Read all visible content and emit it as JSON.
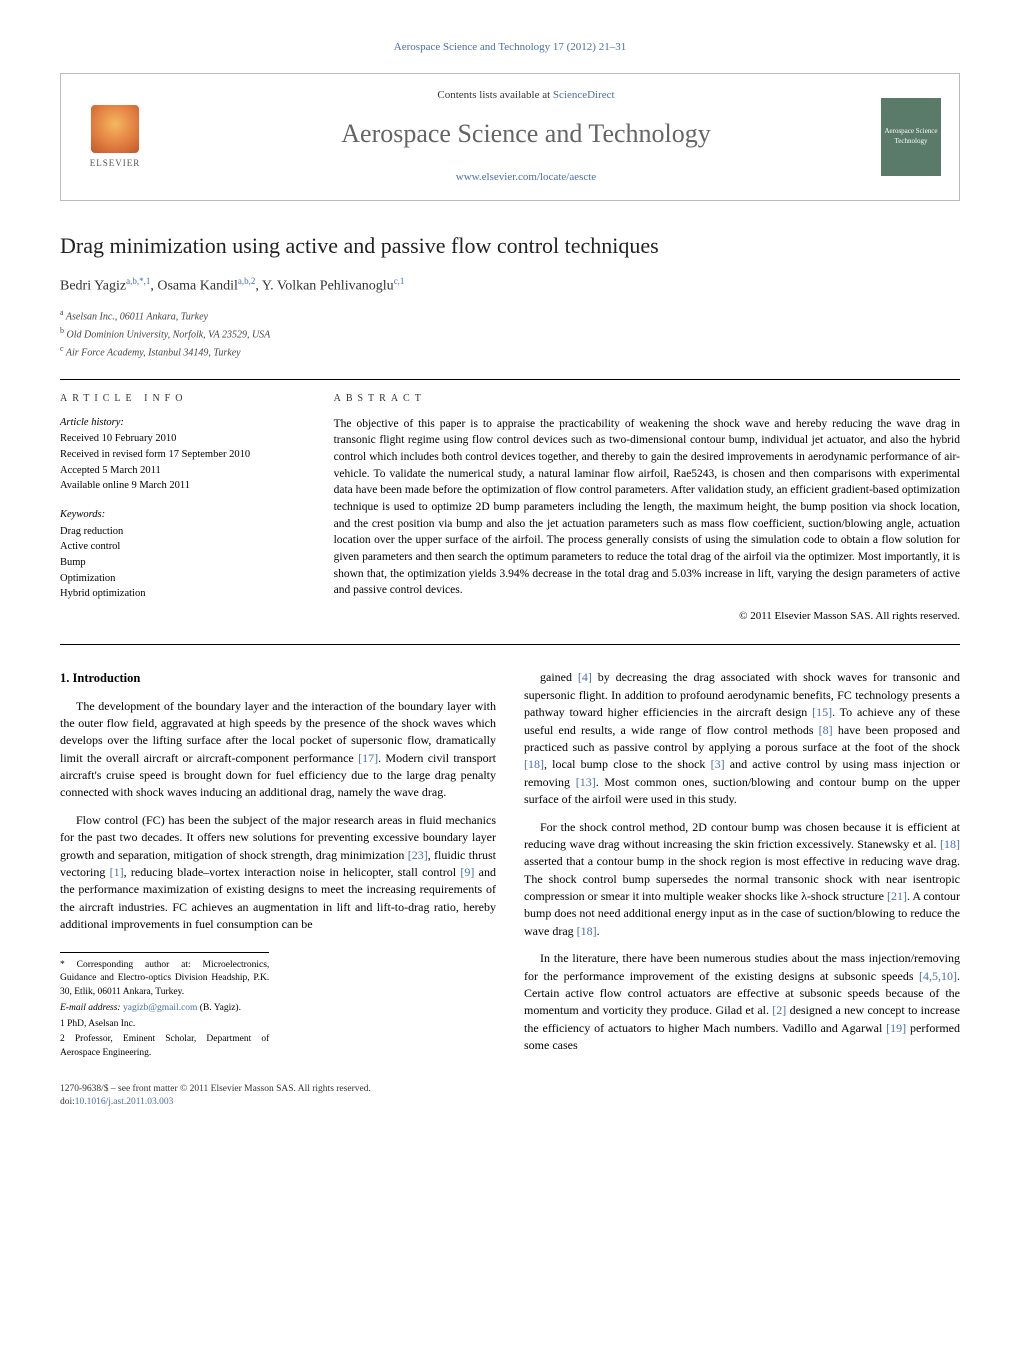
{
  "top_citation": "Aerospace Science and Technology 17 (2012) 21–31",
  "header": {
    "publisher_name": "ELSEVIER",
    "contents_prefix": "Contents lists available at ",
    "contents_link": "ScienceDirect",
    "journal_title": "Aerospace Science and Technology",
    "journal_url": "www.elsevier.com/locate/aescte",
    "cover_text": "Aerospace Science Technology"
  },
  "article": {
    "title": "Drag minimization using active and passive flow control techniques",
    "authors_html": "Bedri Yagiz<sup>a,b,*,1</sup>, Osama Kandil<sup>a,b,2</sup>, Y. Volkan Pehlivanoglu<sup>c,1</sup>",
    "affiliations": [
      {
        "sup": "a",
        "text": "Aselsan Inc., 06011 Ankara, Turkey"
      },
      {
        "sup": "b",
        "text": "Old Dominion University, Norfolk, VA 23529, USA"
      },
      {
        "sup": "c",
        "text": "Air Force Academy, Istanbul 34149, Turkey"
      }
    ]
  },
  "info": {
    "head": "ARTICLE INFO",
    "history_label": "Article history:",
    "history": [
      "Received 10 February 2010",
      "Received in revised form 17 September 2010",
      "Accepted 5 March 2011",
      "Available online 9 March 2011"
    ],
    "keywords_label": "Keywords:",
    "keywords": [
      "Drag reduction",
      "Active control",
      "Bump",
      "Optimization",
      "Hybrid optimization"
    ]
  },
  "abstract": {
    "head": "ABSTRACT",
    "text": "The objective of this paper is to appraise the practicability of weakening the shock wave and hereby reducing the wave drag in transonic flight regime using flow control devices such as two-dimensional contour bump, individual jet actuator, and also the hybrid control which includes both control devices together, and thereby to gain the desired improvements in aerodynamic performance of air-vehicle. To validate the numerical study, a natural laminar flow airfoil, Rae5243, is chosen and then comparisons with experimental data have been made before the optimization of flow control parameters. After validation study, an efficient gradient-based optimization technique is used to optimize 2D bump parameters including the length, the maximum height, the bump position via shock location, and the crest position via bump and also the jet actuation parameters such as mass flow coefficient, suction/blowing angle, actuation location over the upper surface of the airfoil. The process generally consists of using the simulation code to obtain a flow solution for given parameters and then search the optimum parameters to reduce the total drag of the airfoil via the optimizer. Most importantly, it is shown that, the optimization yields 3.94% decrease in the total drag and 5.03% increase in lift, varying the design parameters of active and passive control devices.",
    "copyright": "© 2011 Elsevier Masson SAS. All rights reserved."
  },
  "body": {
    "section_title": "1. Introduction",
    "left": [
      "The development of the boundary layer and the interaction of the boundary layer with the outer flow field, aggravated at high speeds by the presence of the shock waves which develops over the lifting surface after the local pocket of supersonic flow, dramatically limit the overall aircraft or aircraft-component performance [17]. Modern civil transport aircraft's cruise speed is brought down for fuel efficiency due to the large drag penalty connected with shock waves inducing an additional drag, namely the wave drag.",
      "Flow control (FC) has been the subject of the major research areas in fluid mechanics for the past two decades. It offers new solutions for preventing excessive boundary layer growth and separation, mitigation of shock strength, drag minimization [23], fluidic thrust vectoring [1], reducing blade–vortex interaction noise in helicopter, stall control [9] and the performance maximization of existing designs to meet the increasing requirements of the aircraft industries. FC achieves an augmentation in lift and lift-to-drag ratio, hereby additional improvements in fuel consumption can be"
    ],
    "right": [
      "gained [4] by decreasing the drag associated with shock waves for transonic and supersonic flight. In addition to profound aerodynamic benefits, FC technology presents a pathway toward higher efficiencies in the aircraft design [15]. To achieve any of these useful end results, a wide range of flow control methods [8] have been proposed and practiced such as passive control by applying a porous surface at the foot of the shock [18], local bump close to the shock [3] and active control by using mass injection or removing [13]. Most common ones, suction/blowing and contour bump on the upper surface of the airfoil were used in this study.",
      "For the shock control method, 2D contour bump was chosen because it is efficient at reducing wave drag without increasing the skin friction excessively. Stanewsky et al. [18] asserted that a contour bump in the shock region is most effective in reducing wave drag. The shock control bump supersedes the normal transonic shock with near isentropic compression or smear it into multiple weaker shocks like λ-shock structure [21]. A contour bump does not need additional energy input as in the case of suction/blowing to reduce the wave drag [18].",
      "In the literature, there have been numerous studies about the mass injection/removing for the performance improvement of the existing designs at subsonic speeds [4,5,10]. Certain active flow control actuators are effective at subsonic speeds because of the momentum and vorticity they produce. Gilad et al. [2] designed a new concept to increase the efficiency of actuators to higher Mach numbers. Vadillo and Agarwal [19] performed some cases"
    ]
  },
  "footnotes": {
    "corresponding": "* Corresponding author at: Microelectronics, Guidance and Electro-optics Division Headship, P.K. 30, Etlik, 06011 Ankara, Turkey.",
    "email_label": "E-mail address: ",
    "email": "yagizb@gmail.com",
    "email_suffix": " (B. Yagiz).",
    "note1": "1  PhD, Aselsan Inc.",
    "note2": "2  Professor, Eminent Scholar, Department of Aerospace Engineering."
  },
  "footer": {
    "front_matter": "1270-9638/$ – see front matter  © 2011 Elsevier Masson SAS. All rights reserved.",
    "doi_label": "doi:",
    "doi": "10.1016/j.ast.2011.03.003"
  },
  "colors": {
    "link": "#4a6fa5",
    "text": "#000000",
    "journal_title": "#656565",
    "cover_bg": "#5a7a6a"
  }
}
